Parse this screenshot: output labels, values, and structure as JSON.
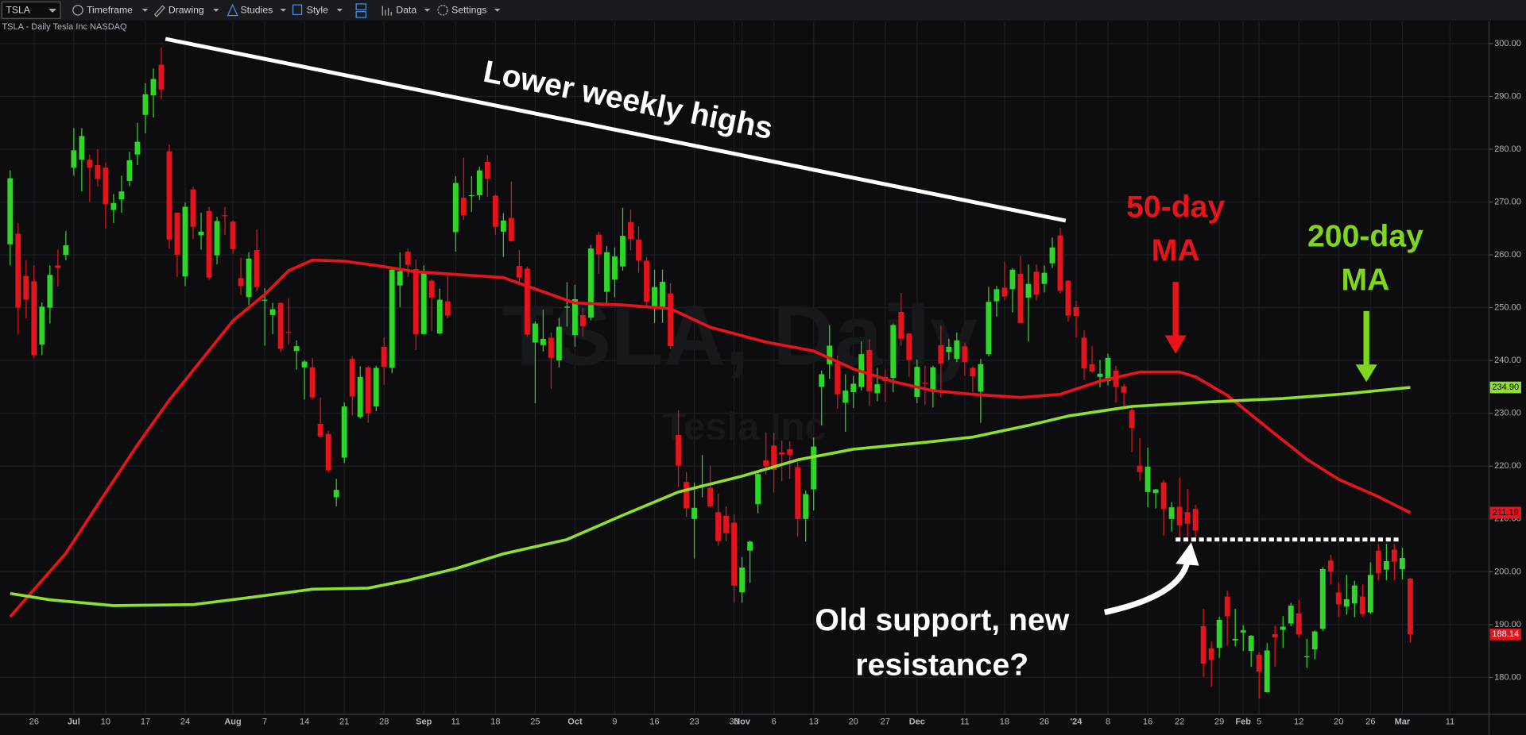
{
  "toolbar": {
    "symbol": "TSLA",
    "items": [
      "Timeframe",
      "Drawing",
      "Studies",
      "Style",
      "Data",
      "Settings"
    ]
  },
  "chart_data": {
    "type": "candlestick",
    "header": "TSLA - Daily  Tesla Inc  NASDAQ",
    "watermark": [
      "TSLA, Daily",
      "Tesla Inc"
    ],
    "ohlc": [
      [
        262,
        276,
        258,
        274.5
      ],
      [
        264,
        266,
        245,
        250
      ],
      [
        256,
        259,
        248,
        251.5
      ],
      [
        255,
        258,
        240.5,
        241
      ],
      [
        243,
        251,
        241,
        250.2
      ],
      [
        250,
        258,
        247,
        256.2
      ],
      [
        258,
        261,
        254,
        257.5
      ],
      [
        260,
        264.5,
        259,
        261.8
      ],
      [
        276.5,
        284,
        275,
        279.8
      ],
      [
        278,
        284,
        272,
        282.5
      ],
      [
        278,
        279,
        270,
        276.5
      ],
      [
        277,
        280,
        273,
        274.4
      ],
      [
        276.5,
        277.5,
        265,
        269.6
      ],
      [
        268.5,
        271.5,
        266,
        269.8
      ],
      [
        270.5,
        275,
        268,
        272
      ],
      [
        274,
        279.5,
        273,
        277.9
      ],
      [
        279,
        285,
        277,
        281.4
      ],
      [
        286.5,
        292.5,
        283,
        290.4
      ],
      [
        290.2,
        295.3,
        286,
        293.3
      ],
      [
        296,
        299.3,
        289.5,
        291.3
      ],
      [
        279.6,
        280.9,
        261.2,
        262.9
      ],
      [
        268,
        268,
        255.8,
        260
      ],
      [
        255.9,
        269.9,
        254.1,
        269.1
      ],
      [
        272.4,
        272.9,
        263,
        265.3
      ],
      [
        263.7,
        268,
        261,
        264.4
      ],
      [
        268.3,
        269.1,
        255.3,
        255.7
      ],
      [
        259.9,
        267.2,
        258.2,
        266.4
      ],
      [
        267.5,
        269.1,
        263.8,
        267.4
      ],
      [
        266.3,
        266.5,
        260.2,
        261.1
      ],
      [
        255.6,
        259.5,
        252.4,
        254.1
      ],
      [
        252,
        260.5,
        250.5,
        259.3
      ],
      [
        260.9,
        264.8,
        253.1,
        253.9
      ],
      [
        251.5,
        253.7,
        242.8,
        251.5
      ],
      [
        248.6,
        250.9,
        245,
        249.7
      ],
      [
        250.9,
        251,
        241.6,
        242.2
      ],
      [
        245.4,
        251.8,
        243,
        245.3
      ],
      [
        241.8,
        243.8,
        238.3,
        242.7
      ],
      [
        238.7,
        240.1,
        232.6,
        239.8
      ],
      [
        238.7,
        240.5,
        232.6,
        233
      ],
      [
        228,
        233,
        225.4,
        225.6
      ],
      [
        226.1,
        226.7,
        218.8,
        219.2
      ],
      [
        214.1,
        217.6,
        212.4,
        215.5
      ],
      [
        221.6,
        232.1,
        220.6,
        231.3
      ],
      [
        240.3,
        240.8,
        229.6,
        233.2
      ],
      [
        229.3,
        238.9,
        229,
        236.9
      ],
      [
        238.7,
        238.9,
        228.2,
        230
      ],
      [
        231.3,
        239,
        230.4,
        238.6
      ],
      [
        242.6,
        244.4,
        235.4,
        238.8
      ],
      [
        238.6,
        257.5,
        237.6,
        257.2
      ],
      [
        254.2,
        260.5,
        250.1,
        256.9
      ],
      [
        260.6,
        261.2,
        255.8,
        258.1
      ],
      [
        257.3,
        259.1,
        242,
        245
      ],
      [
        245,
        258,
        244.9,
        256.5
      ],
      [
        255.1,
        255.4,
        245.5,
        251.9
      ],
      [
        245.1,
        253.6,
        245,
        251.5
      ],
      [
        251.2,
        256.5,
        248,
        248.5
      ],
      [
        264.3,
        274.9,
        260.6,
        273.6
      ],
      [
        270.8,
        278.4,
        266.6,
        267.5
      ],
      [
        271.3,
        274.9,
        268.1,
        271.3
      ],
      [
        271.3,
        276.7,
        270.4,
        276
      ],
      [
        277.6,
        278.9,
        271,
        274.4
      ],
      [
        271.2,
        271.4,
        263.8,
        265.3
      ],
      [
        264.4,
        267.9,
        259.6,
        266.5
      ],
      [
        267,
        273.9,
        262.5,
        262.6
      ],
      [
        257.9,
        260.9,
        254.2,
        255.7
      ],
      [
        257.4,
        257.8,
        244.5,
        244.9
      ],
      [
        243.4,
        247.4,
        231.9,
        247
      ],
      [
        242.9,
        249.6,
        241.7,
        244.1
      ],
      [
        244.3,
        245.3,
        234.6,
        240.5
      ],
      [
        240,
        248.1,
        238.7,
        246.4
      ],
      [
        250,
        254.8,
        246.4,
        250.2
      ],
      [
        244.8,
        254.3,
        242.6,
        251.6
      ],
      [
        248.6,
        250,
        244.5,
        246.5
      ],
      [
        248.1,
        261.9,
        247.6,
        261.2
      ],
      [
        263.8,
        264.4,
        256.4,
        260.1
      ],
      [
        253,
        261.7,
        250.7,
        260.5
      ],
      [
        255.3,
        261.4,
        252,
        259.7
      ],
      [
        257.8,
        268.9,
        257,
        263.6
      ],
      [
        266.2,
        268.6,
        260.9,
        263
      ],
      [
        262.9,
        265.4,
        256.6,
        258.9
      ],
      [
        258.9,
        259.6,
        250.2,
        251.1
      ],
      [
        250.1,
        257.2,
        247.1,
        253.9
      ],
      [
        250.1,
        257.2,
        247.1,
        254.9
      ],
      [
        252.7,
        254.6,
        242.1,
        242.7
      ],
      [
        225.9,
        230.6,
        216.1,
        220.1
      ],
      [
        217,
        218.9,
        210.4,
        212
      ],
      [
        210,
        216.9,
        202.5,
        212.1
      ],
      [
        216.5,
        222.1,
        214.1,
        216.5
      ],
      [
        215.9,
        220.1,
        212.2,
        212.4
      ],
      [
        211.3,
        214.8,
        204.9,
        205.8
      ],
      [
        210.6,
        212.4,
        205.8,
        207.3
      ],
      [
        209.3,
        210.9,
        194.1,
        197.4
      ],
      [
        196.1,
        202.8,
        194.1,
        200.8
      ],
      [
        204,
        205.9,
        197.9,
        205.7
      ],
      [
        212.8,
        219.2,
        211.1,
        218.5
      ],
      [
        221.1,
        226.4,
        218.4,
        220
      ],
      [
        223.9,
        226.3,
        215,
        219.3
      ],
      [
        222.6,
        224.8,
        217.2,
        222.2
      ],
      [
        223.2,
        224.7,
        217.6,
        222.1
      ],
      [
        219.8,
        220.8,
        206.7,
        210
      ],
      [
        210,
        215.4,
        205.7,
        214.7
      ],
      [
        215.6,
        225.4,
        211.6,
        223.7
      ],
      [
        235,
        238.1,
        227.7,
        237.4
      ],
      [
        239.3,
        246.7,
        236.5,
        242.8
      ],
      [
        239.5,
        240.9,
        230.9,
        233.6
      ],
      [
        232,
        237.4,
        226.5,
        234.3
      ],
      [
        234,
        237.1,
        231,
        235.6
      ],
      [
        235,
        243.6,
        234.3,
        241.2
      ],
      [
        242,
        244,
        231.4,
        234.2
      ],
      [
        233.8,
        238.6,
        232.3,
        235.5
      ],
      [
        236.9,
        238.3,
        232.1,
        236.1
      ],
      [
        236.7,
        247,
        234,
        246.7
      ],
      [
        249.2,
        252.8,
        242.8,
        244.1
      ],
      [
        245.1,
        245.2,
        236.9,
        240.1
      ],
      [
        233.1,
        240.2,
        231.9,
        238.8
      ],
      [
        235.8,
        239,
        231.6,
        235.6
      ],
      [
        234.4,
        239,
        231.1,
        238.7
      ],
      [
        242.9,
        246.6,
        233,
        239.4
      ],
      [
        241.6,
        244.1,
        240.1,
        242.6
      ],
      [
        240.3,
        245.3,
        239.7,
        243.8
      ],
      [
        242.7,
        243.4,
        237.1,
        239.7
      ],
      [
        238.6,
        238.9,
        233.9,
        237
      ],
      [
        234.1,
        240.3,
        228.2,
        239.3
      ],
      [
        241.2,
        253.9,
        240.8,
        251.1
      ],
      [
        251.2,
        254.1,
        248.3,
        253.5
      ],
      [
        253.8,
        258.7,
        251.4,
        252.1
      ],
      [
        253.5,
        257.5,
        249.1,
        257.2
      ],
      [
        256.4,
        259.8,
        247,
        247.1
      ],
      [
        251.9,
        258.2,
        243.6,
        254.5
      ],
      [
        256.8,
        258.2,
        251.4,
        252.5
      ],
      [
        254.5,
        258,
        252.9,
        256.6
      ],
      [
        258.4,
        263.3,
        257.5,
        261.4
      ],
      [
        263.7,
        265.1,
        252.7,
        253.2
      ],
      [
        255.1,
        255.2,
        247.4,
        248.5
      ],
      [
        250.1,
        251.3,
        244.4,
        248.4
      ],
      [
        244.3,
        245.7,
        236.3,
        238.5
      ],
      [
        239.3,
        242.7,
        237.7,
        237.9
      ],
      [
        236.9,
        240.1,
        234.9,
        237.5
      ],
      [
        236.1,
        241.3,
        235.3,
        240.5
      ],
      [
        238.1,
        239,
        232,
        235
      ],
      [
        235.1,
        235.5,
        231.3,
        233.9
      ],
      [
        230.6,
        231,
        222.7,
        227.2
      ],
      [
        220.1,
        225.3,
        217.2,
        218.9
      ],
      [
        215.1,
        223.5,
        212.2,
        219.9
      ],
      [
        214.9,
        215.7,
        212,
        215.6
      ],
      [
        216.9,
        217.4,
        206.8,
        211.9
      ],
      [
        210,
        213.2,
        207.6,
        212.2
      ],
      [
        212.3,
        217.8,
        206.3,
        208.8
      ],
      [
        211.3,
        215.7,
        206.5,
        209.1
      ],
      [
        211.9,
        212.7,
        206.5,
        207.8
      ],
      [
        189.7,
        193,
        180.1,
        182.6
      ],
      [
        185.5,
        186.8,
        178.2,
        183.3
      ],
      [
        185.6,
        191.5,
        183.7,
        190.9
      ],
      [
        195.3,
        196.4,
        186.1,
        191.6
      ],
      [
        187,
        193,
        185.9,
        187.3
      ],
      [
        188.5,
        189.9,
        185,
        188.9
      ],
      [
        185,
        188,
        182,
        187.9
      ],
      [
        184.3,
        184.8,
        176,
        181.1
      ],
      [
        177.2,
        186.5,
        177.1,
        185.1
      ],
      [
        188.2,
        189.8,
        182,
        187.6
      ],
      [
        189,
        191.6,
        185.6,
        189.6
      ],
      [
        190.2,
        194.1,
        189.7,
        193.6
      ],
      [
        192.1,
        194.7,
        187.5,
        188.1
      ],
      [
        184,
        187.3,
        181.8,
        184
      ],
      [
        185.3,
        188.9,
        183.4,
        188.7
      ],
      [
        189.2,
        200.9,
        188.8,
        200.5
      ],
      [
        202.1,
        203.2,
        197.6,
        200
      ],
      [
        196.1,
        198,
        191.4,
        193.8
      ],
      [
        193.4,
        199.4,
        191.9,
        194.8
      ],
      [
        194,
        198.3,
        191.4,
        197.4
      ],
      [
        195.3,
        197.6,
        191.5,
        192
      ],
      [
        192.3,
        201.8,
        192,
        199.4
      ],
      [
        204,
        205.3,
        198.4,
        199.7
      ],
      [
        200.4,
        205.3,
        198.4,
        202
      ],
      [
        204.2,
        205.3,
        198.4,
        201.9
      ],
      [
        200.5,
        204.5,
        198.5,
        202.6
      ],
      [
        198.7,
        198.8,
        186.6,
        188.14
      ]
    ],
    "up_color": "#2fd62a",
    "down_color": "#e3141b",
    "last_close_label": "188.14",
    "series": [
      {
        "color": "#e8141c",
        "x": [
          0,
          7,
          12,
          16,
          20,
          24,
          28,
          32,
          35,
          38,
          42,
          46,
          51,
          56,
          62,
          67,
          71,
          77,
          83,
          88,
          95,
          101,
          106,
          111,
          116,
          121,
          127,
          132,
          137,
          142,
          147,
          149,
          153,
          158,
          163,
          167,
          172,
          176
        ],
        "values": [
          191.5,
          203.5,
          215,
          224,
          232.5,
          240,
          247.5,
          252.5,
          257,
          259,
          258.8,
          258,
          256.8,
          256.3,
          255.7,
          253,
          250.9,
          250.5,
          249.8,
          246.3,
          243.5,
          241.8,
          238.4,
          236,
          234.3,
          233.6,
          233,
          233.6,
          236.1,
          237.8,
          237.8,
          236.9,
          233.4,
          227.3,
          221.3,
          217.5,
          214.2,
          211.19
        ],
        "last_value_label": "211.19"
      },
      {
        "color": "#8fe02c",
        "x": [
          0,
          5,
          13,
          23,
          30,
          38,
          45,
          50,
          56,
          62,
          70,
          77,
          84,
          92,
          99,
          106,
          115,
          121,
          128,
          133,
          141,
          150,
          160,
          168,
          176
        ],
        "values": [
          195.9,
          194.7,
          193.6,
          193.8,
          195.1,
          196.7,
          196.9,
          198.4,
          200.6,
          203.4,
          206.1,
          210.7,
          215.1,
          218.1,
          221.2,
          223.2,
          224.5,
          225.5,
          227.7,
          229.5,
          231.3,
          232.1,
          232.8,
          233.7,
          234.9
        ],
        "last_value_label": "234.90"
      }
    ],
    "xlim": [
      -1.28,
      185.9
    ],
    "ylim": [
      173,
      304.2
    ],
    "xticks": [
      {
        "value": 3,
        "label": "26"
      },
      {
        "value": 8,
        "label": "Jul"
      },
      {
        "value": 12,
        "label": "10"
      },
      {
        "value": 17,
        "label": "17"
      },
      {
        "value": 22,
        "label": "24"
      },
      {
        "value": 28,
        "label": "Aug"
      },
      {
        "value": 32,
        "label": "7"
      },
      {
        "value": 37,
        "label": "14"
      },
      {
        "value": 42,
        "label": "21"
      },
      {
        "value": 47,
        "label": "28"
      },
      {
        "value": 52,
        "label": "Sep"
      },
      {
        "value": 56,
        "label": "11"
      },
      {
        "value": 61,
        "label": "18"
      },
      {
        "value": 66,
        "label": "25"
      },
      {
        "value": 71,
        "label": "Oct"
      },
      {
        "value": 76,
        "label": "9"
      },
      {
        "value": 81,
        "label": "16"
      },
      {
        "value": 86,
        "label": "23"
      },
      {
        "value": 91,
        "label": "30"
      },
      {
        "value": 92,
        "label": "Nov"
      },
      {
        "value": 96,
        "label": "6"
      },
      {
        "value": 101,
        "label": "13"
      },
      {
        "value": 106,
        "label": "20"
      },
      {
        "value": 110,
        "label": "27"
      },
      {
        "value": 114,
        "label": "Dec"
      },
      {
        "value": 120,
        "label": "11"
      },
      {
        "value": 125,
        "label": "18"
      },
      {
        "value": 130,
        "label": "26"
      },
      {
        "value": 134,
        "label": "'24"
      },
      {
        "value": 138,
        "label": "8"
      },
      {
        "value": 143,
        "label": "16"
      },
      {
        "value": 147,
        "label": "22"
      },
      {
        "value": 152,
        "label": "29"
      },
      {
        "value": 155,
        "label": "Feb"
      },
      {
        "value": 157,
        "label": "5"
      },
      {
        "value": 162,
        "label": "12"
      },
      {
        "value": 167,
        "label": "20"
      },
      {
        "value": 171,
        "label": "26"
      },
      {
        "value": 175,
        "label": "Mar"
      },
      {
        "value": 181,
        "label": "11"
      }
    ],
    "yticks": [
      {
        "value": 180,
        "label": "180.00"
      },
      {
        "value": 190,
        "label": "190.00"
      },
      {
        "value": 200,
        "label": "200.00"
      },
      {
        "value": 210,
        "label": "210.00"
      },
      {
        "value": 220,
        "label": "220.00"
      },
      {
        "value": 230,
        "label": "230.00"
      },
      {
        "value": 240,
        "label": "240.00"
      },
      {
        "value": 250,
        "label": "250.00"
      },
      {
        "value": 260,
        "label": "260.00"
      },
      {
        "value": 270,
        "label": "270.00"
      },
      {
        "value": 280,
        "label": "280.00"
      },
      {
        "value": 290,
        "label": "290.00"
      },
      {
        "value": 300,
        "label": "300.00"
      }
    ],
    "grid": true,
    "resistance_level": 206.1,
    "annotations": {
      "trend": "Lower weekly highs",
      "ma50": [
        "50-day",
        "MA"
      ],
      "ma200": [
        "200-day",
        "MA"
      ],
      "support": [
        "Old support, new",
        "resistance?"
      ]
    }
  }
}
